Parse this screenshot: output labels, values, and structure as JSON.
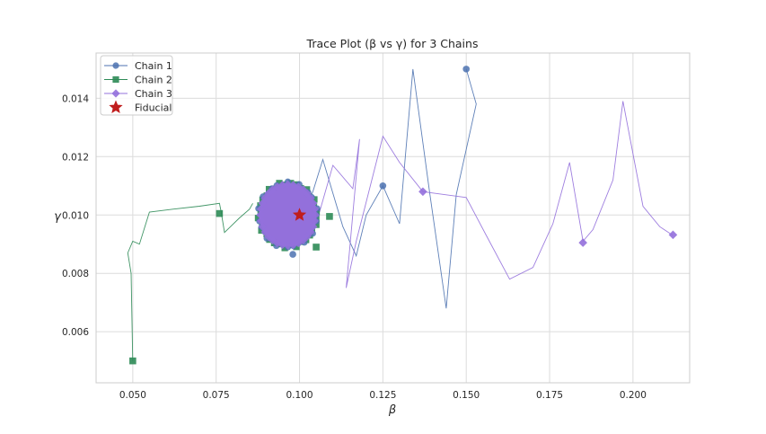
{
  "chart_data": {
    "type": "line",
    "title": "Trace Plot (β vs γ) for 3 Chains",
    "xlabel": "β",
    "ylabel": "γ",
    "xlim": [
      0.039,
      0.217
    ],
    "ylim": [
      0.00425,
      0.01555
    ],
    "xticks": [
      "0.050",
      "0.075",
      "0.100",
      "0.125",
      "0.150",
      "0.175",
      "0.200"
    ],
    "xtick_values": [
      0.05,
      0.075,
      0.1,
      0.125,
      0.15,
      0.175,
      0.2
    ],
    "yticks": [
      "0.006",
      "0.008",
      "0.010",
      "0.012",
      "0.014"
    ],
    "ytick_values": [
      0.006,
      0.008,
      0.01,
      0.012,
      0.014
    ],
    "grid": true,
    "legend_position": "top-left",
    "colors": {
      "chain1": "#4c72b0",
      "chain2": "#2e8b57",
      "chain3": "#9370db",
      "fiducial": "#c01d1d",
      "grid": "#dcdcdc",
      "axis": "#cccccc"
    },
    "cluster": {
      "center": [
        0.0965,
        0.01
      ],
      "radius_beta": 0.0085,
      "radius_gamma": 0.00108,
      "edge_markers": 32
    },
    "series": [
      {
        "name": "Chain 1",
        "marker": "circle",
        "color": "#4c72b0",
        "x": [
          0.15,
          0.153,
          0.147,
          0.144,
          0.139,
          0.134,
          0.13,
          0.125,
          0.12,
          0.117,
          0.113,
          0.107,
          0.104,
          0.101
        ],
        "y": [
          0.015,
          0.0138,
          0.0107,
          0.0068,
          0.0108,
          0.015,
          0.0097,
          0.011,
          0.01,
          0.0086,
          0.0096,
          0.0119,
          0.0108,
          0.0101
        ],
        "marker_points": [
          [
            0.15,
            0.015
          ],
          [
            0.125,
            0.011
          ],
          [
            0.098,
            0.00865
          ]
        ]
      },
      {
        "name": "Chain 2",
        "marker": "square",
        "color": "#2e8b57",
        "x": [
          0.05,
          0.0495,
          0.0485,
          0.05,
          0.052,
          0.055,
          0.062,
          0.07,
          0.076,
          0.0765,
          0.0775,
          0.082,
          0.085,
          0.086
        ],
        "y": [
          0.005,
          0.008,
          0.0087,
          0.0091,
          0.009,
          0.0101,
          0.0102,
          0.0103,
          0.0104,
          0.0101,
          0.0094,
          0.0099,
          0.0102,
          0.0104
        ],
        "marker_points": [
          [
            0.05,
            0.005
          ],
          [
            0.076,
            0.01005
          ],
          [
            0.105,
            0.0089
          ],
          [
            0.109,
            0.00995
          ]
        ]
      },
      {
        "name": "Chain 3",
        "marker": "diamond",
        "color": "#9370db",
        "x": [
          0.212,
          0.208,
          0.203,
          0.197,
          0.194,
          0.188,
          0.185,
          0.181,
          0.176,
          0.17,
          0.163,
          0.156,
          0.15,
          0.137,
          0.13,
          0.125,
          0.117,
          0.114,
          0.118,
          0.116,
          0.11,
          0.106
        ],
        "y": [
          0.0093,
          0.0096,
          0.0103,
          0.0139,
          0.0112,
          0.0095,
          0.0091,
          0.0118,
          0.0097,
          0.0082,
          0.0078,
          0.0093,
          0.0106,
          0.0108,
          0.0118,
          0.0127,
          0.0091,
          0.0075,
          0.0126,
          0.0109,
          0.0117,
          0.0101
        ],
        "marker_points": [
          [
            0.137,
            0.0108
          ],
          [
            0.185,
            0.00905
          ],
          [
            0.212,
            0.00932
          ]
        ]
      },
      {
        "name": "Fiducial",
        "marker": "star",
        "color": "#c01d1d",
        "x": [
          0.1
        ],
        "y": [
          0.01
        ]
      }
    ]
  }
}
